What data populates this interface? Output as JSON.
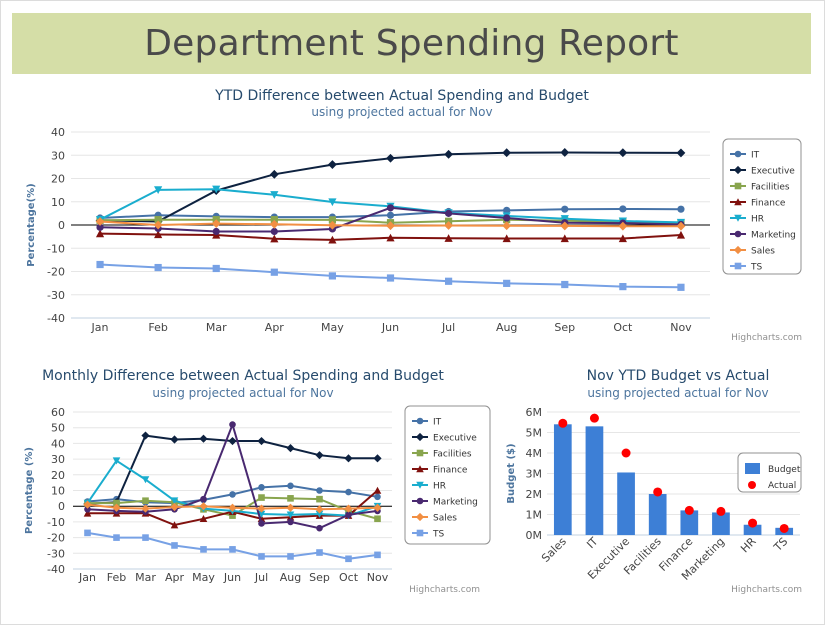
{
  "page": {
    "title": "Department Spending Report"
  },
  "colors": {
    "IT": "#4572a7",
    "Executive": "#0e2240",
    "Facilities": "#89a54e",
    "Finance": "#80110e",
    "HR": "#1aadce",
    "Marketing": "#492970",
    "Sales": "#f28f43",
    "TS": "#77a1e5",
    "Budget": "#3d7fd6",
    "Actual": "#ff0000"
  },
  "credits": "Highcharts.com",
  "chart_data": [
    {
      "type": "line",
      "title": "YTD Difference between Actual Spending and Budget",
      "subtitle": "using projected actual for Nov",
      "ylabel": "Percentage(%)",
      "ylim": [
        -40,
        40
      ],
      "yticks": [
        -40,
        -30,
        -20,
        -10,
        0,
        10,
        20,
        30,
        40
      ],
      "grid": true,
      "legend_position": "right",
      "categories": [
        "Jan",
        "Feb",
        "Mar",
        "Apr",
        "May",
        "Jun",
        "Jul",
        "Aug",
        "Sep",
        "Oct",
        "Nov"
      ],
      "series": [
        {
          "name": "IT",
          "marker": "circle",
          "values": [
            3,
            4.2,
            3.7,
            3.4,
            3.4,
            4.2,
            5.8,
            6.3,
            6.8,
            6.9,
            6.8
          ]
        },
        {
          "name": "Executive",
          "marker": "diamond",
          "values": [
            2,
            1.5,
            14.8,
            21.8,
            26,
            28.7,
            30.4,
            31.1,
            31.2,
            31.1,
            31
          ]
        },
        {
          "name": "Facilities",
          "marker": "square",
          "values": [
            2,
            2.3,
            2.3,
            2.3,
            2.2,
            1,
            1.6,
            2.3,
            1.8,
            1.4,
            0.9
          ]
        },
        {
          "name": "Finance",
          "marker": "triangle",
          "values": [
            -3.7,
            -4.1,
            -4.3,
            -5.9,
            -6.4,
            -5.5,
            -5.7,
            -5.8,
            -5.8,
            -5.8,
            -4.3
          ]
        },
        {
          "name": "HR",
          "marker": "triangle-down",
          "values": [
            2.3,
            15.1,
            15.4,
            13,
            9.9,
            8,
            5.2,
            3.9,
            2.7,
            1.7,
            1.1
          ]
        },
        {
          "name": "Marketing",
          "marker": "circle",
          "values": [
            -1,
            -1.5,
            -2.8,
            -2.8,
            -1.7,
            7.4,
            5,
            3,
            1,
            0.8,
            0.2
          ]
        },
        {
          "name": "Sales",
          "marker": "diamond",
          "values": [
            1.5,
            0,
            0.6,
            0.3,
            -0.1,
            -0.3,
            -0.2,
            -0.3,
            -0.4,
            -0.5,
            -0.5
          ]
        },
        {
          "name": "TS",
          "marker": "square",
          "values": [
            -17,
            -18.3,
            -18.7,
            -20.3,
            -21.9,
            -22.8,
            -24.2,
            -25.1,
            -25.6,
            -26.5,
            -26.8
          ]
        }
      ]
    },
    {
      "type": "line",
      "title": "Monthly Difference between Actual Spending and Budget",
      "subtitle": "using projected actual for Nov",
      "ylabel": "Percentage (%)",
      "ylim": [
        -40,
        60
      ],
      "yticks": [
        -40,
        -30,
        -20,
        -10,
        0,
        10,
        20,
        30,
        40,
        50,
        60
      ],
      "grid": true,
      "legend_position": "right",
      "categories": [
        "Jan",
        "Feb",
        "Mar",
        "Apr",
        "May",
        "Jun",
        "Jul",
        "Aug",
        "Sep",
        "Oct",
        "Nov"
      ],
      "series": [
        {
          "name": "IT",
          "marker": "circle",
          "values": [
            3,
            4.5,
            2.5,
            2,
            4,
            7.5,
            12,
            13,
            10,
            9,
            6
          ]
        },
        {
          "name": "Executive",
          "marker": "diamond",
          "values": [
            1.5,
            2.5,
            45,
            42.5,
            43,
            41.5,
            41.5,
            37,
            32.5,
            30.5,
            30.5
          ]
        },
        {
          "name": "Facilities",
          "marker": "square",
          "values": [
            2,
            2,
            3.5,
            2.5,
            -2,
            -6,
            5.5,
            5,
            4.5,
            -3,
            -8
          ]
        },
        {
          "name": "Finance",
          "marker": "triangle",
          "values": [
            -4.5,
            -4.5,
            -4.5,
            -12,
            -8,
            -3.5,
            -8,
            -7,
            -6,
            -6,
            10
          ]
        },
        {
          "name": "HR",
          "marker": "triangle-down",
          "values": [
            2,
            29,
            17,
            3.5,
            -1.5,
            -3,
            -5,
            -5.5,
            -5,
            -6,
            0
          ]
        },
        {
          "name": "Marketing",
          "marker": "circle",
          "values": [
            -2,
            -3,
            -3.5,
            -2,
            4.5,
            52,
            -11,
            -10,
            -14,
            -5.5,
            -3
          ]
        },
        {
          "name": "Sales",
          "marker": "diamond",
          "values": [
            1,
            -1,
            -1.5,
            -0.5,
            0,
            -1,
            -1.5,
            -1,
            -2,
            -1.5,
            -1
          ]
        },
        {
          "name": "TS",
          "marker": "square",
          "values": [
            -17,
            -20,
            -20,
            -25,
            -27.5,
            -27.5,
            -32,
            -32,
            -29.5,
            -33.5,
            -31
          ]
        }
      ]
    },
    {
      "type": "bar",
      "title": "Nov YTD Budget vs Actual",
      "subtitle": "using projected actual for Nov",
      "ylabel": "Budget ($)",
      "ylim": [
        0,
        6000000
      ],
      "yticks": [
        0,
        1000000,
        2000000,
        3000000,
        4000000,
        5000000,
        6000000
      ],
      "ytick_labels": [
        "0M",
        "1M",
        "2M",
        "3M",
        "4M",
        "5M",
        "6M"
      ],
      "grid": true,
      "legend_position": "right",
      "categories": [
        "Sales",
        "IT",
        "Executive",
        "Facilities",
        "Finance",
        "Marketing",
        "HR",
        "TS"
      ],
      "series": [
        {
          "name": "Budget",
          "kind": "column",
          "values": [
            5400000,
            5300000,
            3050000,
            2000000,
            1200000,
            1100000,
            500000,
            350000
          ]
        },
        {
          "name": "Actual",
          "kind": "scatter",
          "values": [
            5450000,
            5700000,
            4000000,
            2100000,
            1200000,
            1150000,
            580000,
            320000
          ]
        }
      ]
    }
  ]
}
